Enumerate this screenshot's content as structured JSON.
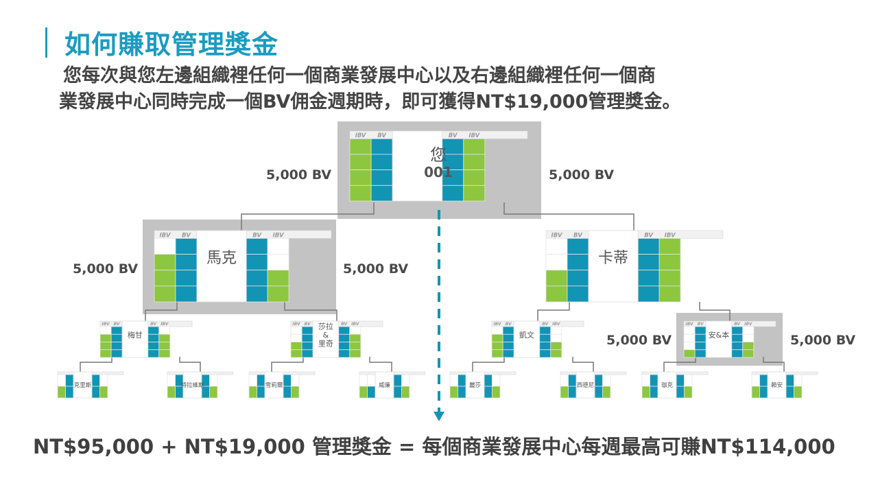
{
  "title": "如何賺取管理獎金",
  "description": {
    "line1": "您每次與您左邊組織裡任何一個商業發展中心以及右邊組織裡任何一個商",
    "line2": "業發展中心同時完成一個BV佣金週期時，即可獲得NT$19,000管理獎金。"
  },
  "tree": {
    "root": {
      "name": "您",
      "id": "001",
      "left_bv": "5,000 BV",
      "right_bv": "5,000 BV"
    },
    "left_child": {
      "name": "馬克",
      "left_bv": "5,000 BV",
      "right_bv": "5,000 BV"
    },
    "right_child": {
      "name": "卡蒂"
    },
    "level3": [
      "梅甘",
      "莎拉\n&\n里奇",
      "凱文",
      "安&本"
    ],
    "an_ben_bv": {
      "left_bv": "5,000 BV",
      "right_bv": "5,000 BV"
    },
    "level4": [
      "克里斯",
      "特拉維斯",
      "雪莉爾",
      "威廉",
      "麗莎",
      "西德尼",
      "珈克",
      "賴安"
    ],
    "column_headers": {
      "ibv": "IBV",
      "bv": "BV"
    }
  },
  "footer": "NT$95,000 + NT$19,000 管理獎金 = 每個商業發展中心每週最高可賺NT$114,000",
  "colors": {
    "accent": "#1b9bc0",
    "green": "#8dc63f",
    "teal": "#1294b4",
    "highlight": "#c3c3c3",
    "line": "#777777"
  }
}
